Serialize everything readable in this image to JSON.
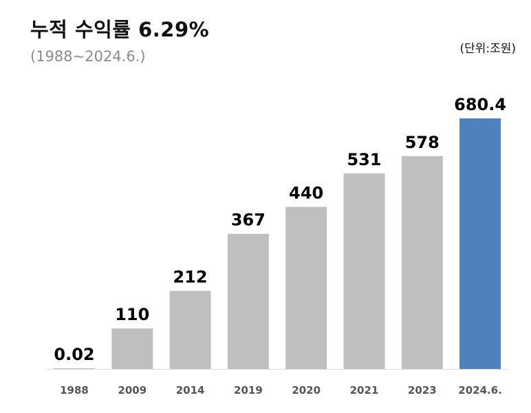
{
  "header": {
    "title": "누적 수익률 6.29%",
    "subtitle": "(1988~2024.6.)",
    "unit": "(단위:조원)"
  },
  "colors": {
    "bar_default": "#bfbfbf",
    "bar_highlight": "#4f81bd",
    "baseline": "#d9d9d9"
  },
  "chart_data": {
    "type": "bar",
    "title": "누적 수익률 6.29%",
    "subtitle": "(1988~2024.6.)",
    "unit": "(단위:조원)",
    "categories": [
      "1988",
      "2009",
      "2014",
      "2019",
      "2020",
      "2021",
      "2023",
      "2024.6."
    ],
    "values": [
      0.02,
      110,
      212,
      367,
      440,
      531,
      578,
      680.4
    ],
    "data_labels": [
      "0.02",
      "110",
      "212",
      "367",
      "440",
      "531",
      "578",
      "680.4"
    ],
    "highlight_index": 7,
    "ylim": [
      0,
      680.4
    ],
    "grid": false,
    "legend": "none"
  }
}
